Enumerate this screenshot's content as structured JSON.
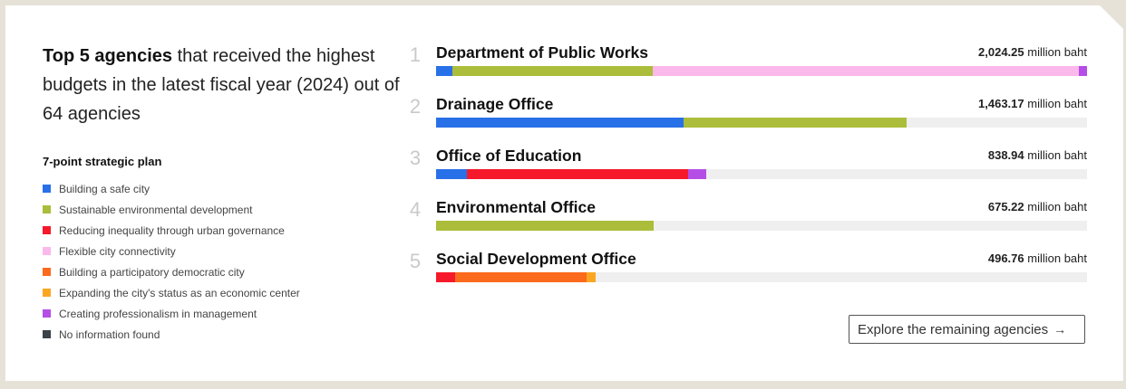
{
  "headline": {
    "strong": "Top 5 agencies",
    "rest": " that received the highest budgets in the latest fiscal year (2024) out of 64 agencies"
  },
  "legend": {
    "title": "7-point strategic plan",
    "items": [
      {
        "label": "Building a safe city",
        "color": "#2870e8"
      },
      {
        "label": "Sustainable environmental development",
        "color": "#abbd3a"
      },
      {
        "label": "Reducing inequality through urban governance",
        "color": "#f5192b"
      },
      {
        "label": "Flexible city connectivity",
        "color": "#fbb8ea"
      },
      {
        "label": "Building a participatory democratic city",
        "color": "#fb6a1d"
      },
      {
        "label": "Expanding the city's status as an economic center",
        "color": "#fba623"
      },
      {
        "label": "Creating professionalism in management",
        "color": "#b54ee6"
      },
      {
        "label": "No information found",
        "color": "#3c4249"
      }
    ]
  },
  "chart_data": {
    "type": "bar",
    "orientation": "horizontal-stacked",
    "unit": "million baht",
    "max": 2024.25,
    "categories": [
      "Department of Public Works",
      "Drainage Office",
      "Office of Education",
      "Environmental Office",
      "Social Development Office"
    ],
    "ranks": [
      "1",
      "2",
      "3",
      "4",
      "5"
    ],
    "totals": [
      2024.25,
      1463.17,
      838.94,
      675.22,
      496.76
    ],
    "totals_text": [
      "2,024.25",
      "1,463.17",
      "838.94",
      "675.22",
      "496.76"
    ],
    "segments": [
      [
        {
          "plan": "Building a safe city",
          "value": 50
        },
        {
          "plan": "Sustainable environmental development",
          "value": 625
        },
        {
          "plan": "Flexible city connectivity",
          "value": 1324
        },
        {
          "plan": "Creating professionalism in management",
          "value": 25
        }
      ],
      [
        {
          "plan": "Building a safe city",
          "value": 770
        },
        {
          "plan": "Sustainable environmental development",
          "value": 693
        }
      ],
      [
        {
          "plan": "Building a safe city",
          "value": 95
        },
        {
          "plan": "Reducing inequality through urban governance",
          "value": 690
        },
        {
          "plan": "Creating professionalism in management",
          "value": 54
        }
      ],
      [
        {
          "plan": "Sustainable environmental development",
          "value": 675.22
        }
      ],
      [
        {
          "plan": "Reducing inequality through urban governance",
          "value": 60
        },
        {
          "plan": "Building a participatory democratic city",
          "value": 407
        },
        {
          "plan": "Expanding the city's status as an economic center",
          "value": 29.76
        }
      ]
    ]
  },
  "explore": {
    "label": "Explore the remaining agencies",
    "arrow": "→"
  }
}
